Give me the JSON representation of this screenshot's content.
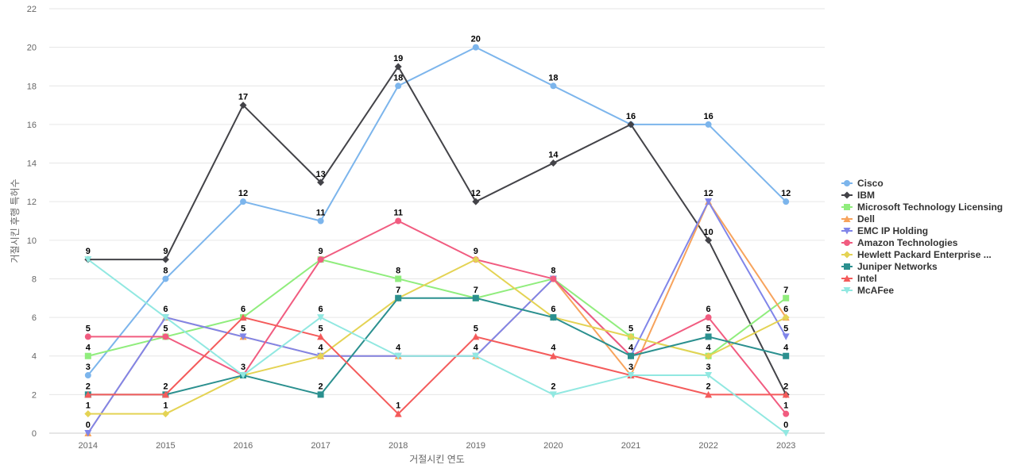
{
  "chart_data": {
    "type": "line",
    "title": "",
    "xlabel": "거절시킨 연도",
    "ylabel": "거절시킨 후행 특허수",
    "ylim": [
      0,
      22
    ],
    "yticks": [
      0,
      2,
      4,
      6,
      8,
      10,
      12,
      14,
      16,
      18,
      20,
      22
    ],
    "grid": true,
    "legend_position": "right",
    "x": [
      "2014",
      "2015",
      "2016",
      "2017",
      "2018",
      "2019",
      "2020",
      "2021",
      "2022",
      "2023"
    ],
    "series": [
      {
        "name": "Cisco",
        "color": "#7cb5ec",
        "marker": "circle",
        "values": [
          3,
          8,
          12,
          11,
          18,
          20,
          18,
          16,
          16,
          12
        ]
      },
      {
        "name": "IBM",
        "color": "#434348",
        "marker": "diamond",
        "values": [
          9,
          9,
          17,
          13,
          19,
          12,
          14,
          16,
          10,
          2
        ]
      },
      {
        "name": "Microsoft Technology Licensing",
        "color": "#90ed7d",
        "marker": "square",
        "values": [
          4,
          5,
          6,
          9,
          8,
          7,
          8,
          5,
          4,
          7
        ]
      },
      {
        "name": "Dell",
        "color": "#f7a35c",
        "marker": "triangle",
        "values": [
          0,
          6,
          5,
          4,
          4,
          4,
          8,
          3,
          12,
          6
        ]
      },
      {
        "name": "EMC IP Holding",
        "color": "#8085e9",
        "marker": "triangle-down",
        "values": [
          0,
          6,
          5,
          4,
          4,
          4,
          8,
          4,
          12,
          5
        ]
      },
      {
        "name": "Amazon Technologies",
        "color": "#f15c80",
        "marker": "circle",
        "values": [
          5,
          5,
          3,
          9,
          11,
          9,
          8,
          4,
          6,
          1
        ]
      },
      {
        "name": "Hewlett Packard Enterprise ...",
        "color": "#e4d354",
        "marker": "diamond",
        "values": [
          1,
          1,
          3,
          4,
          7,
          9,
          6,
          5,
          4,
          6
        ]
      },
      {
        "name": "Juniper Networks",
        "color": "#2b908f",
        "marker": "square",
        "values": [
          2,
          2,
          3,
          2,
          7,
          7,
          6,
          4,
          5,
          4
        ]
      },
      {
        "name": "Intel",
        "color": "#f45b5b",
        "marker": "triangle",
        "values": [
          2,
          2,
          6,
          5,
          1,
          5,
          4,
          3,
          2,
          2
        ]
      },
      {
        "name": "McAFee",
        "color": "#91e8e1",
        "marker": "triangle-down",
        "values": [
          9,
          6,
          3,
          6,
          4,
          4,
          2,
          3,
          3,
          0
        ]
      }
    ],
    "data_labels": [
      {
        "x": "2014",
        "values": [
          9,
          5,
          4,
          3,
          2,
          1,
          0
        ]
      },
      {
        "x": "2015",
        "values": [
          9,
          8,
          6,
          5,
          2,
          1
        ]
      },
      {
        "x": "2016",
        "values": [
          17,
          12,
          6,
          5,
          3
        ]
      },
      {
        "x": "2017",
        "values": [
          13,
          11,
          9,
          6,
          5,
          4,
          2
        ]
      },
      {
        "x": "2018",
        "values": [
          19,
          18,
          11,
          8,
          7,
          4,
          1
        ]
      },
      {
        "x": "2019",
        "values": [
          20,
          12,
          9,
          7,
          5,
          4
        ]
      },
      {
        "x": "2020",
        "values": [
          18,
          14,
          8,
          6,
          4,
          2
        ]
      },
      {
        "x": "2021",
        "values": [
          16,
          5,
          4,
          3
        ]
      },
      {
        "x": "2022",
        "values": [
          16,
          12,
          10,
          6,
          5,
          4,
          3,
          2
        ]
      },
      {
        "x": "2023",
        "values": [
          12,
          7,
          6,
          5,
          4,
          2,
          1,
          0
        ]
      }
    ]
  }
}
